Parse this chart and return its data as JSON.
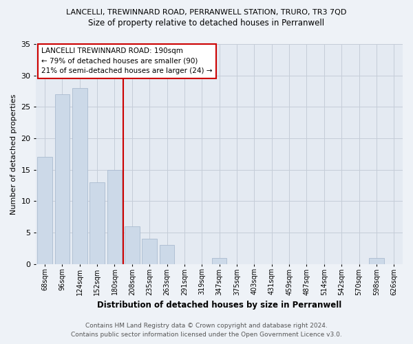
{
  "title1": "LANCELLI, TREWINNARD ROAD, PERRANWELL STATION, TRURO, TR3 7QD",
  "title2": "Size of property relative to detached houses in Perranwell",
  "xlabel": "Distribution of detached houses by size in Perranwell",
  "ylabel": "Number of detached properties",
  "categories": [
    "68sqm",
    "96sqm",
    "124sqm",
    "152sqm",
    "180sqm",
    "208sqm",
    "235sqm",
    "263sqm",
    "291sqm",
    "319sqm",
    "347sqm",
    "375sqm",
    "403sqm",
    "431sqm",
    "459sqm",
    "487sqm",
    "514sqm",
    "542sqm",
    "570sqm",
    "598sqm",
    "626sqm"
  ],
  "values": [
    17,
    27,
    28,
    13,
    15,
    6,
    4,
    3,
    0,
    0,
    1,
    0,
    0,
    0,
    0,
    0,
    0,
    0,
    0,
    1,
    0
  ],
  "bar_color": "#ccd9e8",
  "bar_edge_color": "#aabbd0",
  "vline_color": "#cc0000",
  "annotation_title": "LANCELLI TREWINNARD ROAD: 190sqm",
  "annotation_line1": "← 79% of detached houses are smaller (90)",
  "annotation_line2": "21% of semi-detached houses are larger (24) →",
  "ylim": [
    0,
    35
  ],
  "yticks": [
    0,
    5,
    10,
    15,
    20,
    25,
    30,
    35
  ],
  "footer1": "Contains HM Land Registry data © Crown copyright and database right 2024.",
  "footer2": "Contains public sector information licensed under the Open Government Licence v3.0.",
  "bg_color": "#eef2f7",
  "plot_bg_color": "#e4eaf2",
  "grid_color": "#c5cdd8"
}
